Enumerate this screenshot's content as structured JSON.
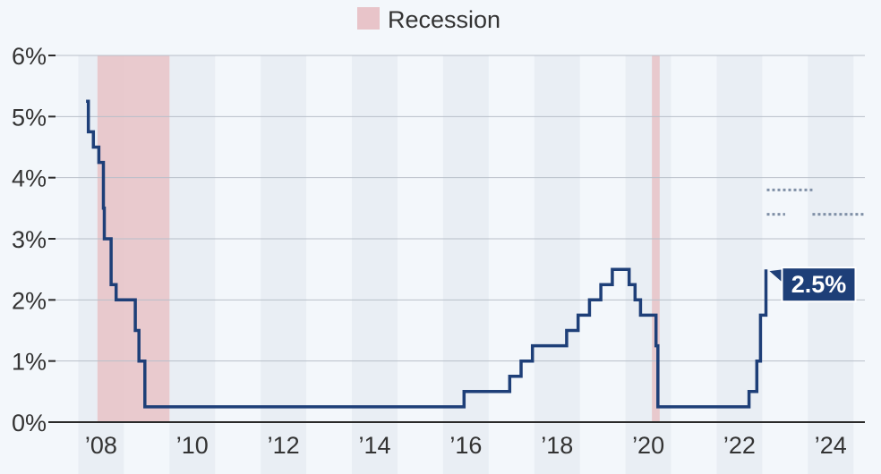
{
  "legend": {
    "label": "Recession",
    "color": "#e8c4c9"
  },
  "callout": {
    "label": "2.5%",
    "color": "#1e3f78"
  },
  "colors": {
    "line": "#1e3f78",
    "grid": "#b8bfc9",
    "band": "#e9eef4",
    "axis": "#2a2a2a",
    "dots": "#7f8fa6"
  },
  "chart_data": {
    "type": "line",
    "title": "",
    "xlabel": "",
    "ylabel": "",
    "xlim": [
      2007.0,
      2024.75
    ],
    "ylim": [
      0,
      6
    ],
    "grid": true,
    "legend_position": "top",
    "y_ticks": [
      {
        "value": 0,
        "label": "0%"
      },
      {
        "value": 1,
        "label": "1%"
      },
      {
        "value": 2,
        "label": "2%"
      },
      {
        "value": 3,
        "label": "3%"
      },
      {
        "value": 4,
        "label": "4%"
      },
      {
        "value": 5,
        "label": "5%"
      },
      {
        "value": 6,
        "label": "6%"
      }
    ],
    "x_ticks": [
      {
        "value": 2008,
        "label": "’08"
      },
      {
        "value": 2010,
        "label": "’10"
      },
      {
        "value": 2012,
        "label": "’12"
      },
      {
        "value": 2014,
        "label": "’14"
      },
      {
        "value": 2016,
        "label": "’16"
      },
      {
        "value": 2018,
        "label": "’18"
      },
      {
        "value": 2020,
        "label": "’20"
      },
      {
        "value": 2022,
        "label": "’22"
      },
      {
        "value": 2024,
        "label": "’24"
      }
    ],
    "recessions": [
      {
        "start": 2007.92,
        "end": 2009.5
      },
      {
        "start": 2020.08,
        "end": 2020.25
      }
    ],
    "series": [
      {
        "step": "after",
        "points": [
          [
            2007.67,
            5.25
          ],
          [
            2007.72,
            4.75
          ],
          [
            2007.83,
            4.5
          ],
          [
            2007.95,
            4.25
          ],
          [
            2008.05,
            3.5
          ],
          [
            2008.07,
            3.0
          ],
          [
            2008.22,
            2.25
          ],
          [
            2008.33,
            2.0
          ],
          [
            2008.75,
            1.5
          ],
          [
            2008.83,
            1.0
          ],
          [
            2008.96,
            0.25
          ],
          [
            2015.96,
            0.5
          ],
          [
            2016.96,
            0.75
          ],
          [
            2017.21,
            1.0
          ],
          [
            2017.46,
            1.25
          ],
          [
            2018.21,
            1.5
          ],
          [
            2018.46,
            1.75
          ],
          [
            2018.71,
            2.0
          ],
          [
            2018.96,
            2.25
          ],
          [
            2019.21,
            2.5
          ],
          [
            2019.58,
            2.25
          ],
          [
            2019.71,
            2.0
          ],
          [
            2019.83,
            1.75
          ],
          [
            2020.17,
            1.25
          ],
          [
            2020.21,
            0.25
          ],
          [
            2022.21,
            0.5
          ],
          [
            2022.38,
            1.0
          ],
          [
            2022.46,
            1.75
          ],
          [
            2022.58,
            2.5
          ]
        ],
        "end": 2022.58
      }
    ],
    "projections": [
      {
        "y": 3.8,
        "from": 2022.6,
        "to": 2023.6
      },
      {
        "y": 3.4,
        "from": 2022.6,
        "to": 2023.0
      },
      {
        "y": 3.4,
        "from": 2023.6,
        "to": 2024.75
      }
    ],
    "annotations": [
      {
        "x": 2022.58,
        "y": 2.5,
        "label": "2.5%"
      }
    ]
  }
}
